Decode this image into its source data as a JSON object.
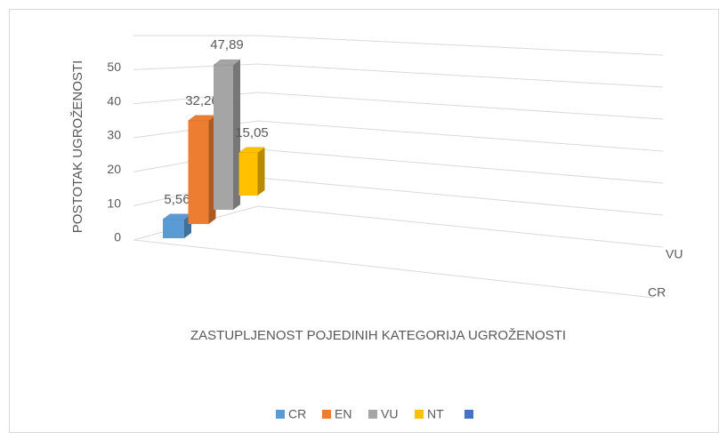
{
  "chart_data": {
    "type": "bar3d",
    "ylabel": "POSTOTAK UGROŽENOSTI",
    "xlabel": "ZASTUPLJENOST POJEDINIH KATEGORIJA UGROŽENOSTI",
    "categories": [
      "CR",
      "EN",
      "VU",
      "NT"
    ],
    "values": [
      5.56,
      32.26,
      47.89,
      15.05
    ],
    "value_labels": [
      "5,56",
      "32,26",
      "47,89",
      "15,05"
    ],
    "colors": [
      "#5b9bd5",
      "#ed7d31",
      "#a5a5a5",
      "#ffc000"
    ],
    "depth_labels": [
      "CR",
      "VU"
    ],
    "ylim": [
      0,
      60
    ],
    "yticks": [
      0,
      10,
      20,
      30,
      40,
      50
    ],
    "grid": true,
    "legend": "bottom"
  }
}
